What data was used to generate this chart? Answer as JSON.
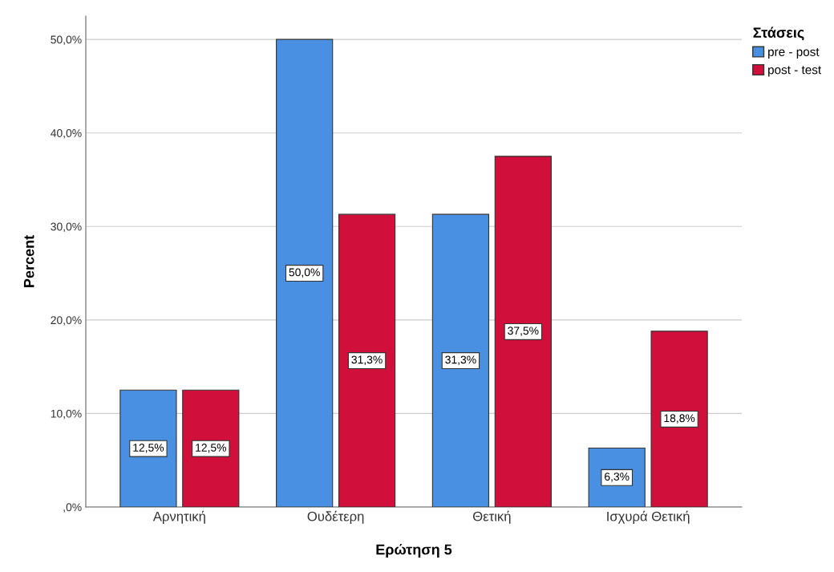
{
  "chart_data": {
    "type": "bar",
    "xlabel": "Ερώτηση 5",
    "ylabel": "Percent",
    "legend_title": "Στάσεις",
    "categories": [
      "Αρνητική",
      "Ουδέτερη",
      "Θετική",
      "Ισχυρά Θετική"
    ],
    "series": [
      {
        "name": "pre - post",
        "color": "#4a90e2",
        "values": [
          12.5,
          50.0,
          31.3,
          6.3
        ],
        "value_labels": [
          "12,5%",
          "50,0%",
          "31,3%",
          "6,3%"
        ]
      },
      {
        "name": "post - test",
        "color": "#d0103a",
        "values": [
          12.5,
          31.3,
          37.5,
          18.8
        ],
        "value_labels": [
          "12,5%",
          "31,3%",
          "37,5%",
          "18,8%"
        ]
      }
    ],
    "ylim": [
      0,
      52.5
    ],
    "yticks": [
      {
        "value": 0,
        "label": ",0%"
      },
      {
        "value": 10,
        "label": "10,0%"
      },
      {
        "value": 20,
        "label": "20,0%"
      },
      {
        "value": 30,
        "label": "30,0%"
      },
      {
        "value": 40,
        "label": "40,0%"
      },
      {
        "value": 50,
        "label": "50,0%"
      }
    ],
    "grid": "y",
    "legend": "top right"
  }
}
